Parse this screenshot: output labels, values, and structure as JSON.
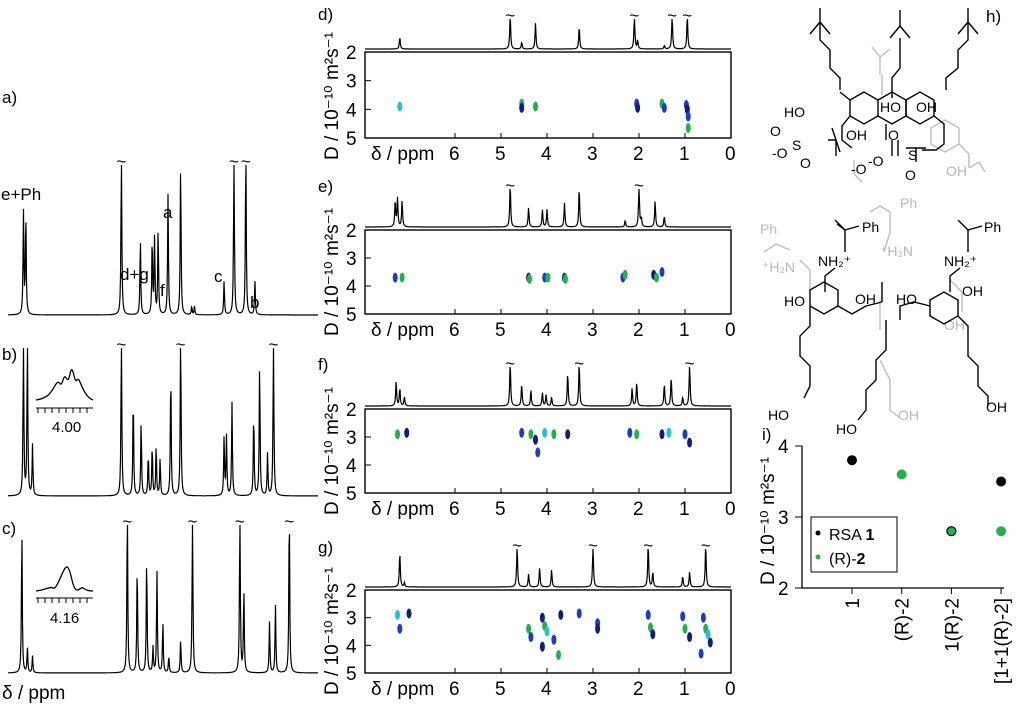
{
  "panel_labels": {
    "a": "a)",
    "b": "b)",
    "c": "c)",
    "d": "d)",
    "e": "e)",
    "f": "f)",
    "g": "g)",
    "h": "h)",
    "i": "i)"
  },
  "axis": {
    "ppm_label": "δ / ppm",
    "d_label": "D / 10⁻¹⁰ m²s⁻¹",
    "ppm_ticks": [
      "6",
      "5",
      "4",
      "3",
      "2",
      "1",
      "0"
    ],
    "d_ticks": [
      "2",
      "3",
      "4",
      "5"
    ],
    "tilde": "~"
  },
  "peak_labels": {
    "ePh": "e+Ph",
    "dg": "d+g",
    "f": "f",
    "a": "a",
    "c": "c",
    "b": "b"
  },
  "insets": {
    "b": "4.00",
    "c": "4.16"
  },
  "structure_labels": {
    "ho": "HO",
    "oh": "OH",
    "so3": "O",
    "s": "S",
    "minus": "-O",
    "nh2": "NH₂⁺",
    "h2n": "⁺H₂N",
    "ph": "Ph"
  },
  "colors": {
    "black": "#000000",
    "green": "#21b24b",
    "blue": "#1a3cc8",
    "navy": "#101c80",
    "cyan": "#22c3d4",
    "grey": "#bdbdbd"
  },
  "chart_data": [
    {
      "type": "line",
      "name": "a",
      "peaks": [
        [
          7.28,
          0.6
        ],
        [
          7.22,
          0.6
        ],
        [
          4.8,
          1
        ],
        [
          4.32,
          0.45
        ],
        [
          4.02,
          0.45
        ],
        [
          3.96,
          0.45
        ],
        [
          3.87,
          0.5
        ],
        [
          3.62,
          0.7
        ],
        [
          3.3,
          0.9
        ],
        [
          3.02,
          0.05
        ],
        [
          2.95,
          0.05
        ],
        [
          2.2,
          0.2
        ],
        [
          1.95,
          1
        ],
        [
          1.65,
          1
        ],
        [
          1.42,
          0.2
        ]
      ]
    },
    {
      "type": "line",
      "name": "b",
      "peaks": [
        [
          7.28,
          0.95
        ],
        [
          7.18,
          0.95
        ],
        [
          7.05,
          0.3
        ],
        [
          4.8,
          1
        ],
        [
          4.5,
          0.6
        ],
        [
          4.3,
          0.45
        ],
        [
          4.12,
          0.25
        ],
        [
          4.02,
          0.3
        ],
        [
          3.92,
          0.3
        ],
        [
          3.82,
          0.22
        ],
        [
          3.55,
          0.75
        ],
        [
          3.3,
          1
        ],
        [
          2.2,
          0.35
        ],
        [
          2.14,
          0.35
        ],
        [
          2.0,
          0.55
        ],
        [
          1.45,
          0.5
        ],
        [
          1.3,
          0.8
        ],
        [
          1.1,
          0.25
        ],
        [
          0.95,
          1
        ]
      ]
    },
    {
      "type": "line",
      "name": "c",
      "peaks": [
        [
          7.32,
          0.85
        ],
        [
          7.18,
          0.15
        ],
        [
          7.05,
          0.1
        ],
        [
          4.65,
          1
        ],
        [
          4.4,
          0.65
        ],
        [
          4.16,
          0.7
        ],
        [
          4.0,
          0.15
        ],
        [
          3.9,
          0.6
        ],
        [
          3.75,
          0.3
        ],
        [
          3.6,
          0.1
        ],
        [
          3.3,
          0.2
        ],
        [
          3.0,
          1
        ],
        [
          1.8,
          1
        ],
        [
          1.7,
          0.5
        ],
        [
          1.05,
          0.3
        ],
        [
          0.9,
          0.4
        ],
        [
          0.55,
          1
        ]
      ]
    },
    {
      "type": "scatter",
      "name": "d",
      "peaks": [
        [
          7.2,
          0.35
        ],
        [
          4.8,
          1
        ],
        [
          4.55,
          0.2
        ],
        [
          4.25,
          0.75
        ],
        [
          3.3,
          0.65
        ],
        [
          2.1,
          1
        ],
        [
          2.03,
          0.25
        ],
        [
          1.45,
          0.1
        ],
        [
          1.28,
          1
        ],
        [
          0.95,
          1
        ]
      ],
      "spots": [
        [
          7.2,
          3.9,
          "cyan"
        ],
        [
          4.55,
          3.8,
          "green"
        ],
        [
          4.55,
          3.95,
          "navy"
        ],
        [
          4.25,
          3.9,
          "green"
        ],
        [
          2.05,
          3.8,
          "blue"
        ],
        [
          2.03,
          3.95,
          "navy"
        ],
        [
          1.5,
          3.8,
          "green"
        ],
        [
          1.45,
          3.95,
          "blue"
        ],
        [
          0.97,
          3.85,
          "blue"
        ],
        [
          0.95,
          4.0,
          "navy"
        ],
        [
          0.93,
          4.25,
          "blue"
        ],
        [
          0.93,
          4.65,
          "green"
        ]
      ]
    },
    {
      "type": "scatter",
      "name": "e",
      "peaks": [
        [
          7.3,
          0.6
        ],
        [
          7.25,
          0.65
        ],
        [
          7.15,
          0.6
        ],
        [
          4.8,
          1
        ],
        [
          4.4,
          0.45
        ],
        [
          4.1,
          0.4
        ],
        [
          4.0,
          0.4
        ],
        [
          3.62,
          0.55
        ],
        [
          3.3,
          0.9
        ],
        [
          2.3,
          0.15
        ],
        [
          2.0,
          1
        ],
        [
          1.95,
          0.2
        ],
        [
          1.65,
          0.6
        ],
        [
          1.45,
          0.25
        ]
      ],
      "spots": [
        [
          7.3,
          3.7,
          "blue"
        ],
        [
          7.15,
          3.7,
          "green"
        ],
        [
          4.4,
          3.7,
          "navy"
        ],
        [
          4.38,
          3.75,
          "green"
        ],
        [
          4.05,
          3.7,
          "blue"
        ],
        [
          3.98,
          3.7,
          "green"
        ],
        [
          3.62,
          3.7,
          "navy"
        ],
        [
          3.6,
          3.75,
          "green"
        ],
        [
          2.35,
          3.7,
          "blue"
        ],
        [
          2.3,
          3.6,
          "green"
        ],
        [
          1.68,
          3.6,
          "navy"
        ],
        [
          1.62,
          3.7,
          "green"
        ],
        [
          1.5,
          3.5,
          "blue"
        ]
      ]
    },
    {
      "type": "scatter",
      "name": "f",
      "peaks": [
        [
          7.28,
          0.55
        ],
        [
          7.2,
          0.4
        ],
        [
          7.1,
          0.2
        ],
        [
          4.8,
          1
        ],
        [
          4.55,
          0.5
        ],
        [
          4.35,
          0.35
        ],
        [
          4.1,
          0.3
        ],
        [
          4.02,
          0.25
        ],
        [
          3.9,
          0.2
        ],
        [
          3.55,
          0.75
        ],
        [
          3.3,
          1
        ],
        [
          2.15,
          0.4
        ],
        [
          2.05,
          0.55
        ],
        [
          1.45,
          0.5
        ],
        [
          1.3,
          0.65
        ],
        [
          1.05,
          0.2
        ],
        [
          0.9,
          1
        ]
      ],
      "spots": [
        [
          7.25,
          2.9,
          "green"
        ],
        [
          7.05,
          2.85,
          "navy"
        ],
        [
          4.55,
          2.85,
          "blue"
        ],
        [
          4.35,
          2.9,
          "green"
        ],
        [
          4.25,
          3.1,
          "navy"
        ],
        [
          4.2,
          3.55,
          "blue"
        ],
        [
          4.05,
          2.85,
          "cyan"
        ],
        [
          3.85,
          2.9,
          "green"
        ],
        [
          3.55,
          2.9,
          "navy"
        ],
        [
          2.2,
          2.85,
          "blue"
        ],
        [
          2.05,
          2.9,
          "green"
        ],
        [
          1.5,
          2.9,
          "navy"
        ],
        [
          1.35,
          2.85,
          "cyan"
        ],
        [
          1.0,
          2.9,
          "blue"
        ],
        [
          0.9,
          3.2,
          "navy"
        ]
      ]
    },
    {
      "type": "scatter",
      "name": "g",
      "peaks": [
        [
          7.2,
          0.8
        ],
        [
          7.1,
          0.1
        ],
        [
          4.65,
          1
        ],
        [
          4.4,
          0.3
        ],
        [
          4.16,
          0.45
        ],
        [
          3.9,
          0.4
        ],
        [
          3.0,
          1
        ],
        [
          1.8,
          1
        ],
        [
          1.7,
          0.35
        ],
        [
          1.05,
          0.25
        ],
        [
          0.9,
          0.35
        ],
        [
          0.55,
          1
        ]
      ],
      "spots": [
        [
          7.25,
          2.9,
          "cyan"
        ],
        [
          7.2,
          3.4,
          "blue"
        ],
        [
          7.0,
          2.85,
          "navy"
        ],
        [
          4.4,
          3.4,
          "green"
        ],
        [
          4.35,
          3.7,
          "blue"
        ],
        [
          4.1,
          3.0,
          "navy"
        ],
        [
          4.05,
          3.3,
          "green"
        ],
        [
          4.0,
          3.5,
          "cyan"
        ],
        [
          4.1,
          4.05,
          "navy"
        ],
        [
          3.85,
          3.8,
          "blue"
        ],
        [
          3.75,
          4.35,
          "green"
        ],
        [
          3.7,
          2.9,
          "navy"
        ],
        [
          3.3,
          2.85,
          "blue"
        ],
        [
          2.9,
          3.2,
          "blue"
        ],
        [
          2.9,
          3.4,
          "navy"
        ],
        [
          1.8,
          2.9,
          "blue"
        ],
        [
          1.75,
          3.35,
          "green"
        ],
        [
          1.7,
          3.6,
          "navy"
        ],
        [
          1.05,
          2.95,
          "blue"
        ],
        [
          1.0,
          3.4,
          "green"
        ],
        [
          0.9,
          3.7,
          "navy"
        ],
        [
          0.6,
          3.0,
          "blue"
        ],
        [
          0.55,
          3.4,
          "green"
        ],
        [
          0.5,
          3.6,
          "cyan"
        ],
        [
          0.45,
          3.9,
          "navy"
        ],
        [
          0.65,
          4.3,
          "blue"
        ]
      ]
    },
    {
      "type": "scatter",
      "name": "i",
      "ylabel": "D / 10⁻¹⁰ m²s⁻¹",
      "ylim": [
        2,
        4
      ],
      "yticks": [
        "2",
        "3",
        "4"
      ],
      "categories": [
        "1",
        "(R)-2",
        "1(R)-2",
        "[1+1(R)-2]"
      ],
      "series": [
        {
          "name": "RSA 1",
          "color": "#000000",
          "values": [
            3.8,
            null,
            null,
            3.5
          ]
        },
        {
          "name": "(R)-2",
          "color": "#21b24b",
          "values": [
            null,
            3.6,
            2.8,
            2.8
          ]
        }
      ],
      "legend_position": "lower-left",
      "legend": [
        {
          "prefix": "RSA ",
          "bold": "1"
        },
        {
          "prefix": "(R)-",
          "bold": "2"
        }
      ]
    }
  ]
}
